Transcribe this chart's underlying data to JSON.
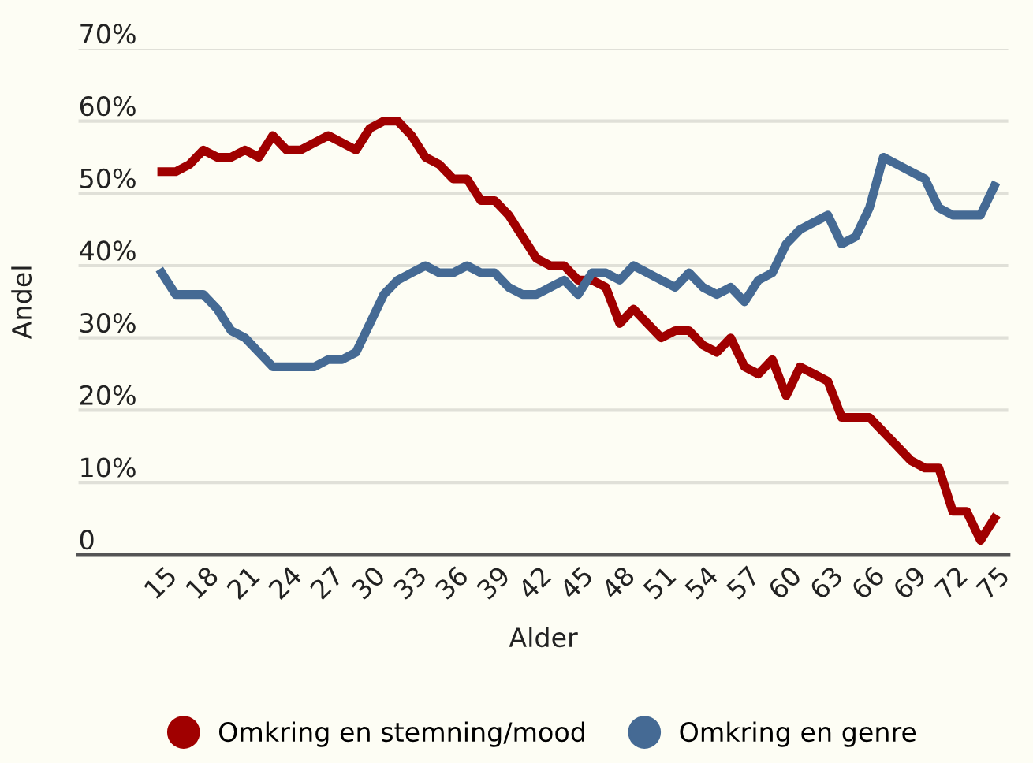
{
  "chart_data": {
    "type": "line",
    "xlabel": "Alder",
    "ylabel": "Andel",
    "x": [
      15,
      16,
      17,
      18,
      19,
      20,
      21,
      22,
      23,
      24,
      25,
      26,
      27,
      28,
      29,
      30,
      31,
      32,
      33,
      34,
      35,
      36,
      37,
      38,
      39,
      40,
      41,
      42,
      43,
      44,
      45,
      46,
      47,
      48,
      49,
      50,
      51,
      52,
      53,
      54,
      55,
      56,
      57,
      58,
      59,
      60,
      61,
      62,
      63,
      64,
      65,
      66,
      67,
      68,
      69,
      70,
      71,
      72,
      73,
      74,
      75
    ],
    "series": [
      {
        "name": "Omkring en stemning/mood",
        "color": "#a00000",
        "values": [
          53,
          53,
          54,
          56,
          55,
          55,
          56,
          55,
          58,
          56,
          56,
          57,
          58,
          57,
          56,
          59,
          60,
          60,
          58,
          55,
          54,
          52,
          52,
          49,
          49,
          47,
          44,
          41,
          40,
          40,
          38,
          38,
          37,
          32,
          34,
          32,
          30,
          31,
          31,
          29,
          28,
          30,
          26,
          25,
          27,
          22,
          26,
          25,
          24,
          19,
          19,
          19,
          17,
          15,
          13,
          12,
          12,
          6,
          6,
          2,
          5
        ]
      },
      {
        "name": "Omkring en genre",
        "color": "#456a94",
        "values": [
          39,
          36,
          36,
          36,
          34,
          31,
          30,
          28,
          26,
          26,
          26,
          26,
          27,
          27,
          28,
          32,
          36,
          38,
          39,
          40,
          39,
          39,
          40,
          39,
          39,
          37,
          36,
          36,
          37,
          38,
          36,
          39,
          39,
          38,
          40,
          39,
          38,
          37,
          39,
          37,
          36,
          37,
          35,
          38,
          39,
          43,
          45,
          46,
          47,
          43,
          44,
          48,
          55,
          54,
          53,
          52,
          48,
          47,
          47,
          47,
          51
        ]
      }
    ],
    "xlim": [
      9,
      76
    ],
    "ylim": [
      0,
      70
    ],
    "xticks": [
      15,
      18,
      21,
      24,
      27,
      30,
      33,
      36,
      39,
      42,
      45,
      48,
      51,
      54,
      57,
      60,
      63,
      66,
      69,
      72,
      75
    ],
    "yticks": [
      {
        "value": 0,
        "label": "0"
      },
      {
        "value": 10,
        "label": "10%"
      },
      {
        "value": 20,
        "label": "20%"
      },
      {
        "value": 30,
        "label": "30%"
      },
      {
        "value": 40,
        "label": "40%"
      },
      {
        "value": 50,
        "label": "50%"
      },
      {
        "value": 60,
        "label": "60%"
      },
      {
        "value": 70,
        "label": "70%"
      }
    ],
    "grid": "y",
    "legend": "bottom",
    "marker": "none",
    "line_style": "solid"
  }
}
